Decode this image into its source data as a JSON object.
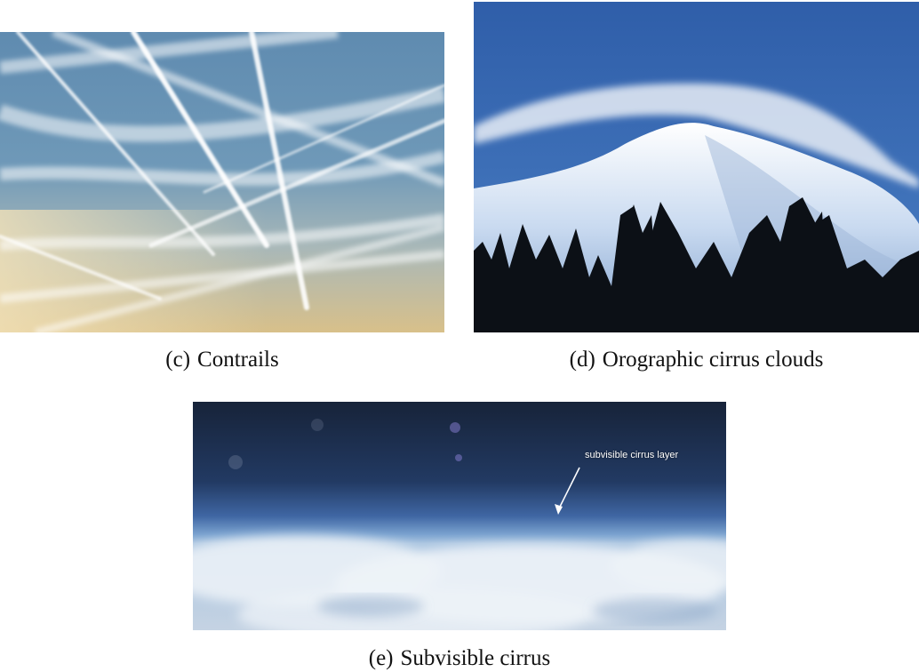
{
  "figure": {
    "panels": [
      {
        "id": "c",
        "label": "(c)",
        "caption": "Contrails"
      },
      {
        "id": "d",
        "label": "(d)",
        "caption": "Orographic cirrus clouds"
      },
      {
        "id": "e",
        "label": "(e)",
        "caption": "Subvisible cirrus",
        "annotation": "subvisible cirrus layer"
      }
    ]
  },
  "colors": {
    "sky_blue": "#4f7fa6",
    "deep_sky": "#2f5ea9",
    "haze_gold": "#d8c08a",
    "snow": "#e6eef8",
    "trees": "#0c1016",
    "space": "#1b2a45"
  }
}
